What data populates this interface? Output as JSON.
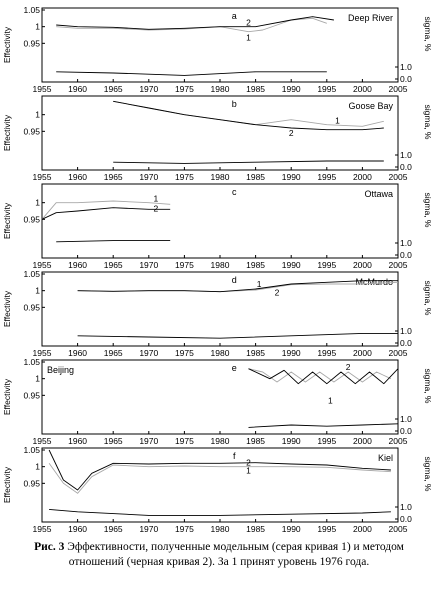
{
  "caption": {
    "prefix": "Рис. 3",
    "text": " Эффективности, полученные модельным (серая кривая 1) и методом отношений (черная кривая 2). За 1 принят уровень 1976 года."
  },
  "colors": {
    "curve_1": "#a8a8a8",
    "curve_2": "#000000",
    "sigma": "#000000",
    "axis": "#000000"
  },
  "chart_data": [
    {
      "type": "line",
      "letter": "a",
      "station": "Deep River",
      "xlabel": "",
      "ylabel": "Effectivity",
      "y2label": "sigma, %",
      "xlim": [
        1955,
        2005
      ],
      "ylim": [
        0.9,
        1.05
      ],
      "y2lim": [
        0.0,
        2.0
      ],
      "x_ticks": [
        "1955",
        "1960",
        "1965",
        "1970",
        "1975",
        "1980",
        "1985",
        "1990",
        "1995",
        "2000",
        "2005"
      ],
      "y_ticks": [
        "0.95",
        "1",
        "1.05"
      ],
      "y2_ticks": [
        "0.0",
        "1.0"
      ],
      "series": [
        {
          "name": "1",
          "x": [
            1957,
            1960,
            1965,
            1970,
            1975,
            1980,
            1984,
            1986,
            1990,
            1993,
            1995
          ],
          "y": [
            1.0,
            0.995,
            0.995,
            0.99,
            0.993,
            1.0,
            0.985,
            0.99,
            1.02,
            1.025,
            1.01
          ]
        },
        {
          "name": "2",
          "x": [
            1957,
            1960,
            1965,
            1970,
            1975,
            1980,
            1985,
            1990,
            1993,
            1996
          ],
          "y": [
            1.005,
            1.0,
            0.998,
            0.992,
            0.995,
            1.0,
            1.0,
            1.02,
            1.03,
            1.02
          ]
        },
        {
          "name": "sigma",
          "x": [
            1957,
            1965,
            1975,
            1985,
            1995
          ],
          "y": [
            0.6,
            0.5,
            0.3,
            0.6,
            0.6
          ]
        }
      ],
      "labels": [
        {
          "text": "1",
          "x": 1984,
          "y": 0.968
        },
        {
          "text": "2",
          "x": 1984,
          "y": 1.012
        }
      ]
    },
    {
      "type": "line",
      "letter": "b",
      "station": "Goose Bay",
      "xlabel": "",
      "ylabel": "Effectivity",
      "y2label": "sigma, %",
      "xlim": [
        1955,
        2005
      ],
      "ylim": [
        0.9,
        1.05
      ],
      "y2lim": [
        0.0,
        2.0
      ],
      "x_ticks": [
        "1955",
        "1960",
        "1965",
        "1970",
        "1975",
        "1980",
        "1985",
        "1990",
        "1995",
        "2000",
        "2005"
      ],
      "y_ticks": [
        "0.95",
        "1"
      ],
      "y2_ticks": [
        "0.0",
        "1.0"
      ],
      "series": [
        {
          "name": "1",
          "x": [
            1965,
            1970,
            1975,
            1980,
            1985,
            1990,
            1995,
            2000,
            2003
          ],
          "y": [
            1.04,
            1.02,
            1.0,
            0.985,
            0.97,
            0.985,
            0.97,
            0.965,
            0.98
          ]
        },
        {
          "name": "2",
          "x": [
            1965,
            1970,
            1975,
            1980,
            1985,
            1990,
            1995,
            2000,
            2003
          ],
          "y": [
            1.04,
            1.02,
            1.0,
            0.985,
            0.97,
            0.96,
            0.955,
            0.955,
            0.96
          ]
        },
        {
          "name": "sigma",
          "x": [
            1965,
            1975,
            1985,
            1995,
            2003
          ],
          "y": [
            0.4,
            0.3,
            0.4,
            0.5,
            0.5
          ]
        }
      ],
      "labels": [
        {
          "text": "1",
          "x": 1996.5,
          "y": 0.983
        },
        {
          "text": "2",
          "x": 1990,
          "y": 0.945
        }
      ]
    },
    {
      "type": "line",
      "letter": "c",
      "station": "Ottawa",
      "xlabel": "",
      "ylabel": "Effectivity",
      "y2label": "sigma, %",
      "xlim": [
        1955,
        2005
      ],
      "ylim": [
        0.9,
        1.05
      ],
      "y2lim": [
        0.0,
        2.0
      ],
      "x_ticks": [
        "1955",
        "1960",
        "1965",
        "1970",
        "1975",
        "1980",
        "1985",
        "1990",
        "1995",
        "2000",
        "2005"
      ],
      "y_ticks": [
        "0.95",
        "1"
      ],
      "y2_ticks": [
        "0.0",
        "1.0"
      ],
      "series": [
        {
          "name": "1",
          "x": [
            1955,
            1957,
            1960,
            1965,
            1970,
            1973
          ],
          "y": [
            0.95,
            1.0,
            1.0,
            1.005,
            1.0,
            0.995
          ]
        },
        {
          "name": "2",
          "x": [
            1955,
            1957,
            1960,
            1965,
            1970,
            1973
          ],
          "y": [
            0.95,
            0.97,
            0.975,
            0.985,
            0.98,
            0.98
          ]
        },
        {
          "name": "sigma",
          "x": [
            1957,
            1965,
            1973
          ],
          "y": [
            1.1,
            1.2,
            1.2
          ]
        }
      ],
      "labels": [
        {
          "text": "1",
          "x": 1971,
          "y": 1.013
        },
        {
          "text": "2",
          "x": 1971,
          "y": 0.982
        }
      ]
    },
    {
      "type": "line",
      "letter": "d",
      "station": "McMurdo",
      "xlabel": "",
      "ylabel": "Effectivity",
      "y2label": "sigma, %",
      "xlim": [
        1955,
        2005
      ],
      "ylim": [
        0.9,
        1.05
      ],
      "y2lim": [
        0.0,
        2.0
      ],
      "x_ticks": [
        "1955",
        "1960",
        "1965",
        "1970",
        "1975",
        "1980",
        "1985",
        "1990",
        "1995",
        "2000",
        "2005"
      ],
      "y_ticks": [
        "0.95",
        "1",
        "1.05"
      ],
      "y2_ticks": [
        "0.0",
        "1.0"
      ],
      "series": [
        {
          "name": "1",
          "x": [
            1960,
            1965,
            1970,
            1975,
            1980,
            1985,
            1990,
            1995,
            2000,
            2005
          ],
          "y": [
            1.0,
            0.998,
            1.0,
            1.0,
            0.997,
            1.002,
            1.018,
            1.02,
            1.02,
            1.025
          ]
        },
        {
          "name": "2",
          "x": [
            1960,
            1965,
            1970,
            1975,
            1980,
            1985,
            1990,
            1995,
            2000,
            2005
          ],
          "y": [
            1.0,
            0.998,
            1.0,
            1.0,
            0.997,
            1.005,
            1.02,
            1.025,
            1.03,
            1.03
          ]
        },
        {
          "name": "sigma",
          "x": [
            1960,
            1970,
            1980,
            1990,
            2000,
            2005
          ],
          "y": [
            0.6,
            0.5,
            0.4,
            0.6,
            0.8,
            0.8
          ]
        }
      ],
      "labels": [
        {
          "text": "1",
          "x": 1985.5,
          "y": 1.02
        },
        {
          "text": "2",
          "x": 1988,
          "y": 0.995
        }
      ]
    },
    {
      "type": "line",
      "letter": "e",
      "station": "Beijing",
      "xlabel": "",
      "ylabel": "Effectivity",
      "y2label": "sigma, %",
      "xlim": [
        1955,
        2005
      ],
      "ylim": [
        0.9,
        1.05
      ],
      "y2lim": [
        0.0,
        2.0
      ],
      "x_ticks": [
        "1955",
        "1960",
        "1965",
        "1970",
        "1975",
        "1980",
        "1985",
        "1990",
        "1995",
        "2000",
        "2005"
      ],
      "y_ticks": [
        "0.95",
        "1",
        "1.05"
      ],
      "y2_ticks": [
        "0.0",
        "1.0"
      ],
      "series": [
        {
          "name": "1",
          "x": [
            1984,
            1986,
            1988,
            1990,
            1992,
            1994,
            1996,
            1998,
            2000,
            2002,
            2004
          ],
          "y": [
            1.03,
            1.02,
            0.99,
            1.02,
            0.99,
            1.02,
            0.99,
            1.02,
            0.99,
            1.02,
            1.0
          ]
        },
        {
          "name": "2",
          "x": [
            1984,
            1987,
            1989,
            1991,
            1993,
            1995,
            1997,
            1999,
            2001,
            2003,
            2005
          ],
          "y": [
            1.03,
            1.0,
            1.025,
            0.985,
            1.02,
            0.985,
            1.02,
            0.985,
            1.02,
            0.985,
            1.03
          ]
        },
        {
          "name": "sigma",
          "x": [
            1984,
            1990,
            1995,
            2000,
            2005
          ],
          "y": [
            0.3,
            0.5,
            0.4,
            0.5,
            0.6
          ]
        }
      ],
      "labels": [
        {
          "text": "1",
          "x": 1995.5,
          "y": 0.935
        },
        {
          "text": "2",
          "x": 1998,
          "y": 1.035
        }
      ]
    },
    {
      "type": "line",
      "letter": "f",
      "station": "Kiel",
      "xlabel": "",
      "ylabel": "Effectivity",
      "y2label": "sigma, %",
      "xlim": [
        1955,
        2005
      ],
      "ylim": [
        0.9,
        1.05
      ],
      "y2lim": [
        0.0,
        2.0
      ],
      "x_ticks": [
        "1955",
        "1960",
        "1965",
        "1970",
        "1975",
        "1980",
        "1985",
        "1990",
        "1995",
        "2000",
        "2005"
      ],
      "y_ticks": [
        "0.95",
        "1",
        "1.05"
      ],
      "y2_ticks": [
        "0.0",
        "1.0"
      ],
      "series": [
        {
          "name": "1",
          "x": [
            1956,
            1958,
            1960,
            1962,
            1965,
            1970,
            1975,
            1980,
            1985,
            1990,
            1995,
            2000,
            2004
          ],
          "y": [
            1.01,
            0.95,
            0.92,
            0.97,
            1.005,
            1.0,
            1.002,
            1.0,
            1.0,
            1.0,
            0.998,
            0.99,
            0.985
          ]
        },
        {
          "name": "2",
          "x": [
            1956,
            1958,
            1960,
            1962,
            1965,
            1970,
            1975,
            1980,
            1985,
            1990,
            1995,
            2000,
            2004
          ],
          "y": [
            1.05,
            0.96,
            0.93,
            0.98,
            1.01,
            1.008,
            1.01,
            1.01,
            1.012,
            1.008,
            1.005,
            0.995,
            0.99
          ]
        },
        {
          "name": "sigma",
          "x": [
            1956,
            1960,
            1970,
            1980,
            1990,
            2000,
            2004
          ],
          "y": [
            0.8,
            0.6,
            0.3,
            0.3,
            0.4,
            0.5,
            0.6
          ]
        }
      ],
      "labels": [
        {
          "text": "1",
          "x": 1984,
          "y": 0.988
        },
        {
          "text": "2",
          "x": 1984,
          "y": 1.012
        }
      ]
    }
  ]
}
